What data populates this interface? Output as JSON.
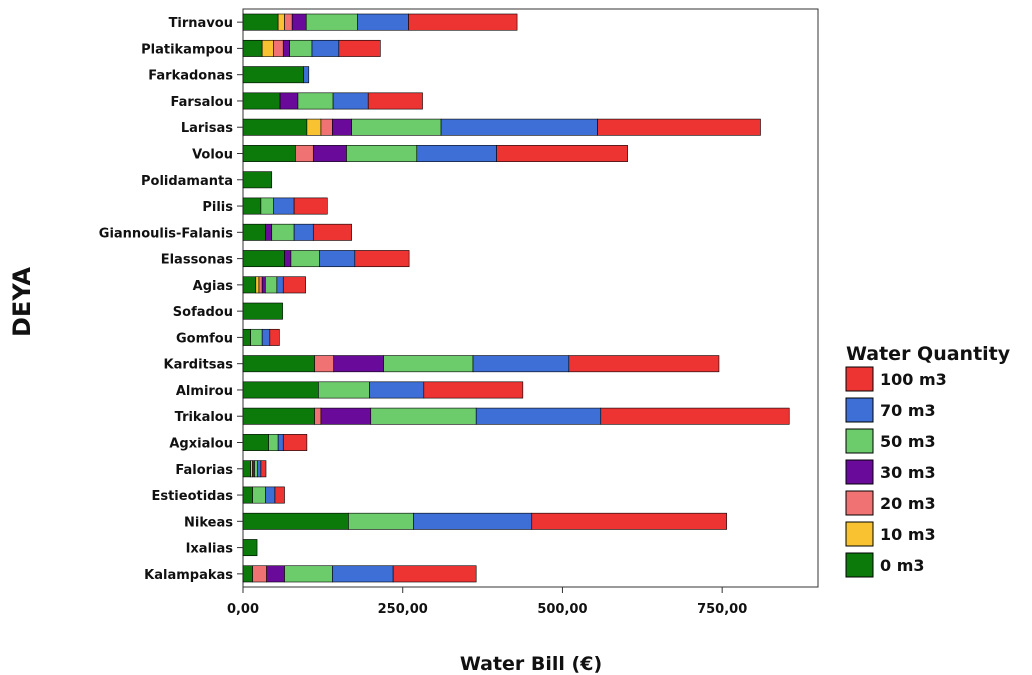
{
  "chart_data": {
    "type": "bar",
    "orientation": "horizontal",
    "stacked": true,
    "title": "",
    "xlabel": "Water Bill (€)",
    "ylabel": "DEYA",
    "xlim": [
      0,
      900
    ],
    "xticks": [
      0,
      250,
      500,
      750
    ],
    "xtick_labels": [
      "0,00",
      "250,00",
      "500,00",
      "750,00"
    ],
    "grid": false,
    "legend": {
      "title": "Water Quantity",
      "placement": "right",
      "order": [
        "100 m3",
        "70 m3",
        "50 m3",
        "30 m3",
        "20 m3",
        "10 m3",
        "0 m3"
      ]
    },
    "colors": {
      "0 m3": "#0b7a0b",
      "10 m3": "#f9c230",
      "20 m3": "#f07272",
      "30 m3": "#6a0a9a",
      "50 m3": "#6ccc6c",
      "70 m3": "#3d6fd6",
      "100 m3": "#ee3333"
    },
    "categories": [
      "Tirnavou",
      "Platikampou",
      "Farkadonas",
      "Farsalou",
      "Larisas",
      "Volou",
      "Polidamanta",
      "Pilis",
      "Giannoulis-Falanis",
      "Elassonas",
      "Agias",
      "Sofadou",
      "Gomfou",
      "Karditsas",
      "Almirou",
      "Trikalou",
      "Agxialou",
      "Falorias",
      "Estieotidas",
      "Nikeas",
      "Ixalias",
      "Kalampakas"
    ],
    "series": [
      {
        "name": "0 m3",
        "values": [
          55,
          30,
          95,
          58,
          100,
          82,
          45,
          28,
          35,
          65,
          20,
          62,
          12,
          112,
          118,
          112,
          40,
          12,
          15,
          165,
          22,
          15
        ]
      },
      {
        "name": "10 m3",
        "values": [
          10,
          18,
          0,
          0,
          22,
          0,
          0,
          0,
          0,
          0,
          5,
          0,
          0,
          0,
          0,
          0,
          0,
          3,
          0,
          0,
          0,
          0
        ]
      },
      {
        "name": "20 m3",
        "values": [
          12,
          15,
          0,
          0,
          18,
          28,
          0,
          0,
          0,
          0,
          5,
          0,
          0,
          30,
          0,
          10,
          0,
          0,
          0,
          0,
          0,
          22
        ]
      },
      {
        "name": "30 m3",
        "values": [
          22,
          10,
          0,
          28,
          30,
          52,
          0,
          0,
          10,
          10,
          5,
          0,
          0,
          78,
          0,
          78,
          0,
          3,
          0,
          0,
          0,
          28
        ]
      },
      {
        "name": "50 m3",
        "values": [
          80,
          35,
          0,
          55,
          140,
          110,
          0,
          20,
          35,
          45,
          18,
          0,
          18,
          140,
          80,
          165,
          15,
          5,
          20,
          102,
          0,
          75
        ]
      },
      {
        "name": "70 m3",
        "values": [
          80,
          42,
          8,
          55,
          245,
          125,
          0,
          32,
          30,
          55,
          10,
          0,
          12,
          150,
          85,
          195,
          8,
          5,
          15,
          185,
          0,
          95
        ]
      },
      {
        "name": "100 m3",
        "values": [
          170,
          65,
          0,
          85,
          255,
          205,
          0,
          52,
          60,
          85,
          35,
          0,
          15,
          235,
          155,
          295,
          37,
          8,
          15,
          305,
          0,
          130
        ]
      }
    ]
  }
}
